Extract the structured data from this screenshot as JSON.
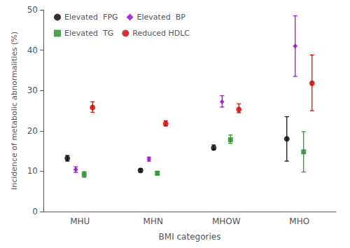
{
  "chart_data": {
    "type": "scatter",
    "xlabel": "BMI categories",
    "ylabel": "Incidence of metabolic abnormalities (%)",
    "categories": [
      "MHU",
      "MHN",
      "MHOW",
      "MHO"
    ],
    "series": [
      {
        "name": "Elevated  FPG",
        "color": "#000000",
        "marker": "circle",
        "values": [
          13.2,
          10.2,
          15.8,
          18.0
        ],
        "err_low": [
          0.7,
          0.4,
          0.5,
          5.5
        ],
        "err_high": [
          0.7,
          0.4,
          0.7,
          5.5
        ]
      },
      {
        "name": "Elevated  BP",
        "color": "#9400D3",
        "marker": "diamond",
        "values": [
          10.4,
          13.0,
          27.2,
          41.0
        ],
        "err_low": [
          0.7,
          0.5,
          1.3,
          7.5
        ],
        "err_high": [
          0.7,
          0.5,
          1.5,
          7.5
        ]
      },
      {
        "name": "Elevated  TG",
        "color": "#228B22",
        "marker": "square",
        "values": [
          9.2,
          9.5,
          17.8,
          14.8
        ],
        "err_low": [
          0.7,
          0.4,
          0.9,
          5.0
        ],
        "err_high": [
          0.7,
          0.4,
          1.2,
          5.0
        ]
      },
      {
        "name": "Reduced HDLC",
        "color": "#CC0000",
        "marker": "circle",
        "values": [
          25.8,
          21.8,
          25.3,
          31.8
        ],
        "err_low": [
          1.2,
          0.6,
          0.8,
          6.8
        ],
        "err_high": [
          1.4,
          0.7,
          1.4,
          7.0
        ]
      }
    ],
    "ylim": [
      0,
      50
    ],
    "yticks": [
      0,
      10,
      20,
      30,
      40,
      50
    ],
    "legend": "upper left",
    "grid": false
  }
}
